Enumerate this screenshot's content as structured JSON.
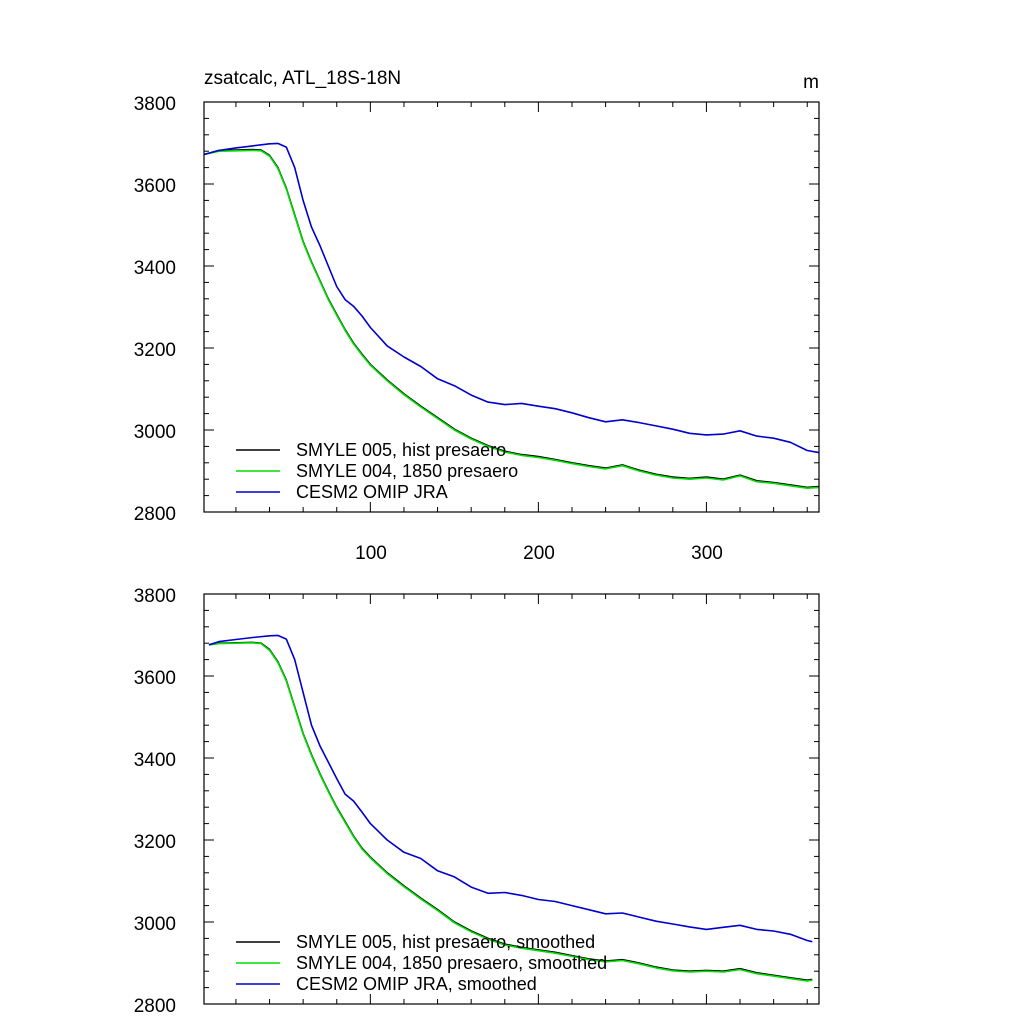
{
  "colors": {
    "smyle005": "#000000",
    "smyle004": "#00dd00",
    "omip": "#0000cc",
    "axis": "#000000"
  },
  "chart_data": [
    {
      "type": "line",
      "title": "zsatcalc, ATL_18S-18N",
      "units": "m",
      "xlabel": "",
      "ylabel": "",
      "xlim": [
        1,
        367
      ],
      "ylim": [
        2800,
        3800
      ],
      "xticks": [
        100,
        200,
        300
      ],
      "yticks": [
        2800,
        3000,
        3200,
        3400,
        3600,
        3800
      ],
      "show_xtick_labels": true,
      "legend_position": "bottom-left",
      "series": [
        {
          "name": "SMYLE 005, hist presaero",
          "color": "#000000",
          "x": [
            1,
            10,
            20,
            30,
            35,
            40,
            45,
            50,
            55,
            60,
            65,
            70,
            75,
            80,
            85,
            90,
            95,
            100,
            110,
            120,
            130,
            140,
            150,
            160,
            170,
            180,
            190,
            200,
            210,
            220,
            230,
            240,
            250,
            260,
            270,
            280,
            290,
            300,
            310,
            320,
            330,
            340,
            350,
            360,
            367
          ],
          "y": [
            3672,
            3682,
            3683,
            3684,
            3683,
            3670,
            3640,
            3590,
            3525,
            3460,
            3410,
            3365,
            3320,
            3282,
            3245,
            3212,
            3185,
            3160,
            3122,
            3088,
            3058,
            3030,
            3002,
            2980,
            2962,
            2948,
            2940,
            2935,
            2928,
            2920,
            2913,
            2907,
            2915,
            2902,
            2892,
            2885,
            2882,
            2885,
            2880,
            2890,
            2876,
            2872,
            2866,
            2860,
            2862
          ]
        },
        {
          "name": "SMYLE 004, 1850 presaero",
          "color": "#00dd00",
          "x": [
            1,
            10,
            20,
            30,
            35,
            40,
            45,
            50,
            55,
            60,
            65,
            70,
            75,
            80,
            85,
            90,
            95,
            100,
            110,
            120,
            130,
            140,
            150,
            160,
            170,
            180,
            190,
            200,
            210,
            220,
            230,
            240,
            250,
            260,
            270,
            280,
            290,
            300,
            310,
            320,
            330,
            340,
            350,
            360,
            367
          ],
          "y": [
            3672,
            3680,
            3681,
            3682,
            3681,
            3668,
            3638,
            3588,
            3523,
            3458,
            3408,
            3363,
            3318,
            3280,
            3243,
            3210,
            3183,
            3158,
            3120,
            3086,
            3056,
            3028,
            3000,
            2978,
            2960,
            2946,
            2938,
            2933,
            2926,
            2918,
            2911,
            2905,
            2913,
            2900,
            2890,
            2883,
            2880,
            2883,
            2878,
            2888,
            2874,
            2870,
            2864,
            2858,
            2860
          ]
        },
        {
          "name": "CESM2 OMIP JRA",
          "color": "#0000cc",
          "x": [
            1,
            10,
            20,
            30,
            40,
            45,
            50,
            55,
            60,
            65,
            70,
            75,
            80,
            85,
            90,
            95,
            100,
            110,
            120,
            130,
            140,
            150,
            160,
            170,
            180,
            190,
            200,
            210,
            220,
            230,
            240,
            250,
            260,
            270,
            280,
            290,
            300,
            310,
            320,
            330,
            340,
            350,
            360,
            367
          ],
          "y": [
            3672,
            3682,
            3688,
            3693,
            3698,
            3699,
            3690,
            3640,
            3560,
            3495,
            3450,
            3400,
            3350,
            3318,
            3302,
            3278,
            3250,
            3205,
            3178,
            3155,
            3125,
            3108,
            3085,
            3068,
            3062,
            3065,
            3058,
            3052,
            3042,
            3030,
            3020,
            3025,
            3018,
            3010,
            3002,
            2992,
            2988,
            2990,
            2998,
            2985,
            2980,
            2970,
            2950,
            2945
          ]
        }
      ]
    },
    {
      "type": "line",
      "title": "",
      "units": "",
      "xlabel": "",
      "ylabel": "",
      "xlim": [
        1,
        367
      ],
      "ylim": [
        2800,
        3800
      ],
      "xticks": [
        100,
        200,
        300
      ],
      "yticks": [
        2800,
        3000,
        3200,
        3400,
        3600,
        3800
      ],
      "show_xtick_labels": false,
      "legend_position": "bottom-left",
      "series": [
        {
          "name": "SMYLE 005, hist presaero, smoothed",
          "color": "#000000",
          "x": [
            4,
            10,
            20,
            30,
            35,
            40,
            45,
            50,
            55,
            60,
            65,
            70,
            75,
            80,
            85,
            90,
            95,
            100,
            110,
            120,
            130,
            140,
            150,
            160,
            170,
            180,
            190,
            200,
            210,
            220,
            230,
            240,
            250,
            260,
            270,
            280,
            290,
            300,
            310,
            320,
            330,
            340,
            350,
            360,
            363
          ],
          "y": [
            3676,
            3680,
            3681,
            3682,
            3680,
            3665,
            3635,
            3590,
            3525,
            3460,
            3408,
            3362,
            3320,
            3280,
            3245,
            3210,
            3180,
            3158,
            3120,
            3088,
            3058,
            3030,
            3000,
            2978,
            2960,
            2946,
            2938,
            2932,
            2926,
            2918,
            2910,
            2905,
            2908,
            2900,
            2890,
            2883,
            2880,
            2882,
            2880,
            2886,
            2876,
            2870,
            2864,
            2858,
            2860
          ]
        },
        {
          "name": "SMYLE 004, 1850 presaero, smoothed",
          "color": "#00dd00",
          "x": [
            4,
            10,
            20,
            30,
            35,
            40,
            45,
            50,
            55,
            60,
            65,
            70,
            75,
            80,
            85,
            90,
            95,
            100,
            110,
            120,
            130,
            140,
            150,
            160,
            170,
            180,
            190,
            200,
            210,
            220,
            230,
            240,
            250,
            260,
            270,
            280,
            290,
            300,
            310,
            320,
            330,
            340,
            350,
            360,
            363
          ],
          "y": [
            3676,
            3679,
            3680,
            3681,
            3679,
            3663,
            3633,
            3588,
            3523,
            3458,
            3406,
            3360,
            3318,
            3278,
            3243,
            3208,
            3178,
            3156,
            3118,
            3086,
            3056,
            3028,
            2998,
            2976,
            2958,
            2944,
            2936,
            2930,
            2924,
            2916,
            2908,
            2903,
            2906,
            2898,
            2888,
            2881,
            2878,
            2880,
            2878,
            2884,
            2874,
            2868,
            2862,
            2856,
            2858
          ]
        },
        {
          "name": "CESM2 OMIP JRA, smoothed",
          "color": "#0000cc",
          "x": [
            4,
            10,
            20,
            30,
            40,
            45,
            50,
            55,
            60,
            65,
            70,
            75,
            80,
            85,
            90,
            95,
            100,
            110,
            120,
            130,
            140,
            150,
            160,
            170,
            180,
            190,
            200,
            210,
            220,
            230,
            240,
            250,
            260,
            270,
            280,
            290,
            300,
            310,
            320,
            330,
            340,
            350,
            360,
            363
          ],
          "y": [
            3676,
            3684,
            3689,
            3694,
            3698,
            3699,
            3690,
            3640,
            3560,
            3480,
            3430,
            3390,
            3350,
            3312,
            3295,
            3268,
            3240,
            3200,
            3170,
            3155,
            3125,
            3110,
            3085,
            3070,
            3072,
            3065,
            3055,
            3050,
            3040,
            3030,
            3020,
            3022,
            3012,
            3002,
            2995,
            2988,
            2982,
            2987,
            2992,
            2982,
            2978,
            2970,
            2955,
            2952
          ]
        }
      ]
    }
  ]
}
